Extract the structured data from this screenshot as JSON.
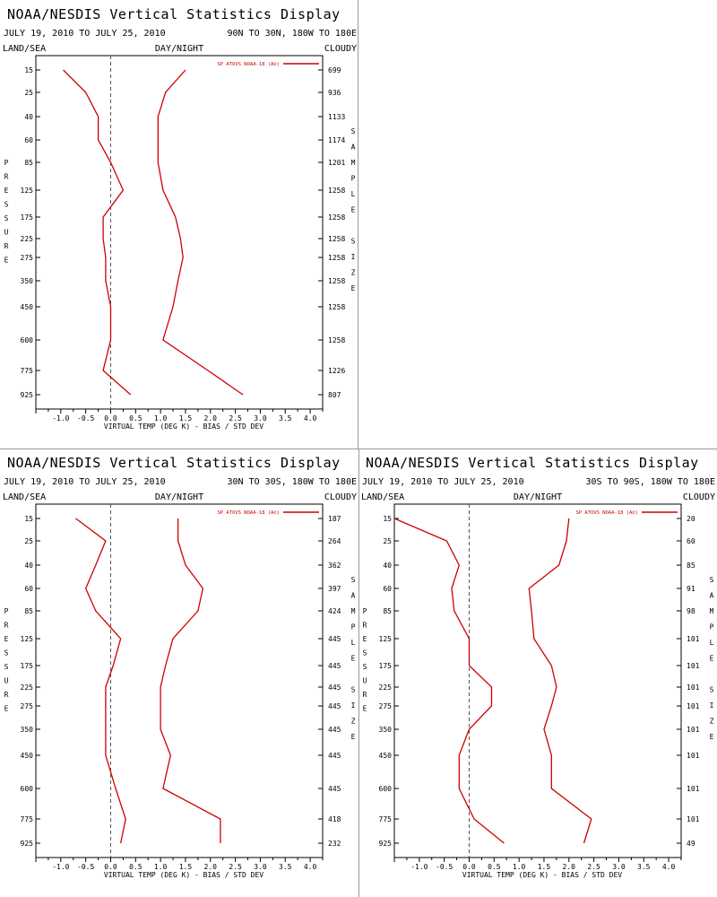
{
  "colors": {
    "series": "#cc0000",
    "axis": "#000000",
    "zero_line": "#555555",
    "divider": "#999999"
  },
  "labels": {
    "title": "NOAA/NESDIS Vertical Statistics Display",
    "date_range": "JULY 19, 2010 TO JULY 25, 2010",
    "land_sea": "LAND/SEA",
    "day_night": "DAY/NIGHT",
    "cloudy": "CLOUDY",
    "left_axis_title": "PRESSURE",
    "right_axis_title": "SAMPLE SIZE",
    "xlabel": "VIRTUAL TEMP (DEG K) - BIAS / STD DEV",
    "legend": "SP ATOVS NOAA-18 (A©)"
  },
  "chart_data": [
    {
      "type": "line",
      "region": "90N TO 30N, 180W TO 180E",
      "pressure_levels": [
        "15",
        "25",
        "40",
        "60",
        "85",
        "125",
        "175",
        "225",
        "275",
        "350",
        "450",
        "600",
        "775",
        "925"
      ],
      "sample_size": [
        "699",
        "936",
        "1133",
        "1174",
        "1201",
        "1258",
        "1258",
        "1258",
        "1258",
        "1258",
        "1258",
        "1258",
        "1226",
        "807"
      ],
      "xlim": [
        -1.5,
        4.25
      ],
      "xticks": [
        "-1.0",
        "-0.5",
        "0.0",
        "0.5",
        "1.0",
        "1.5",
        "2.0",
        "2.5",
        "3.0",
        "3.5",
        "4.0"
      ],
      "series": [
        {
          "name": "BIAS",
          "values": [
            -0.95,
            -0.5,
            -0.25,
            -0.25,
            0.0,
            0.25,
            -0.15,
            -0.15,
            -0.1,
            -0.1,
            0.0,
            0.0,
            -0.15,
            0.4
          ]
        },
        {
          "name": "STD DEV",
          "values": [
            1.5,
            1.1,
            0.95,
            0.95,
            0.95,
            1.05,
            1.3,
            1.4,
            1.45,
            1.35,
            1.25,
            1.05,
            1.95,
            2.65
          ]
        }
      ]
    },
    {
      "type": "line",
      "region": "30N TO 30S, 180W TO 180E",
      "pressure_levels": [
        "15",
        "25",
        "40",
        "60",
        "85",
        "125",
        "175",
        "225",
        "275",
        "350",
        "450",
        "600",
        "775",
        "925"
      ],
      "sample_size": [
        "187",
        "264",
        "362",
        "397",
        "424",
        "445",
        "445",
        "445",
        "445",
        "445",
        "445",
        "445",
        "418",
        "232"
      ],
      "xlim": [
        -1.5,
        4.25
      ],
      "xticks": [
        "-1.0",
        "-0.5",
        "0.0",
        "0.5",
        "1.0",
        "1.5",
        "2.0",
        "2.5",
        "3.0",
        "3.5",
        "4.0"
      ],
      "series": [
        {
          "name": "BIAS",
          "values": [
            -0.7,
            -0.1,
            -0.3,
            -0.5,
            -0.3,
            0.2,
            0.05,
            -0.1,
            -0.1,
            -0.1,
            -0.1,
            0.1,
            0.3,
            0.2
          ]
        },
        {
          "name": "STD DEV",
          "values": [
            1.35,
            1.35,
            1.5,
            1.85,
            1.75,
            1.25,
            1.1,
            1.0,
            1.0,
            1.0,
            1.2,
            1.05,
            2.2,
            2.2
          ]
        }
      ]
    },
    {
      "type": "line",
      "region": "30S TO 90S, 180W TO 180E",
      "pressure_levels": [
        "15",
        "25",
        "40",
        "60",
        "85",
        "125",
        "175",
        "225",
        "275",
        "350",
        "450",
        "600",
        "775",
        "925"
      ],
      "sample_size": [
        "20",
        "60",
        "85",
        "91",
        "98",
        "101",
        "101",
        "101",
        "101",
        "101",
        "101",
        "101",
        "101",
        "49"
      ],
      "xlim": [
        -1.5,
        4.25
      ],
      "xticks": [
        "-1.0",
        "-0.5",
        "0.0",
        "0.5",
        "1.0",
        "1.5",
        "2.0",
        "2.5",
        "3.0",
        "3.5",
        "4.0"
      ],
      "series": [
        {
          "name": "BIAS",
          "values": [
            -1.5,
            -0.45,
            -0.2,
            -0.35,
            -0.3,
            0.0,
            0.0,
            0.45,
            0.45,
            0.0,
            -0.2,
            -0.2,
            0.1,
            0.7
          ]
        },
        {
          "name": "STD DEV",
          "values": [
            2.0,
            1.95,
            1.8,
            1.2,
            1.25,
            1.3,
            1.65,
            1.75,
            1.65,
            1.5,
            1.65,
            1.65,
            2.45,
            2.3
          ]
        }
      ]
    }
  ]
}
